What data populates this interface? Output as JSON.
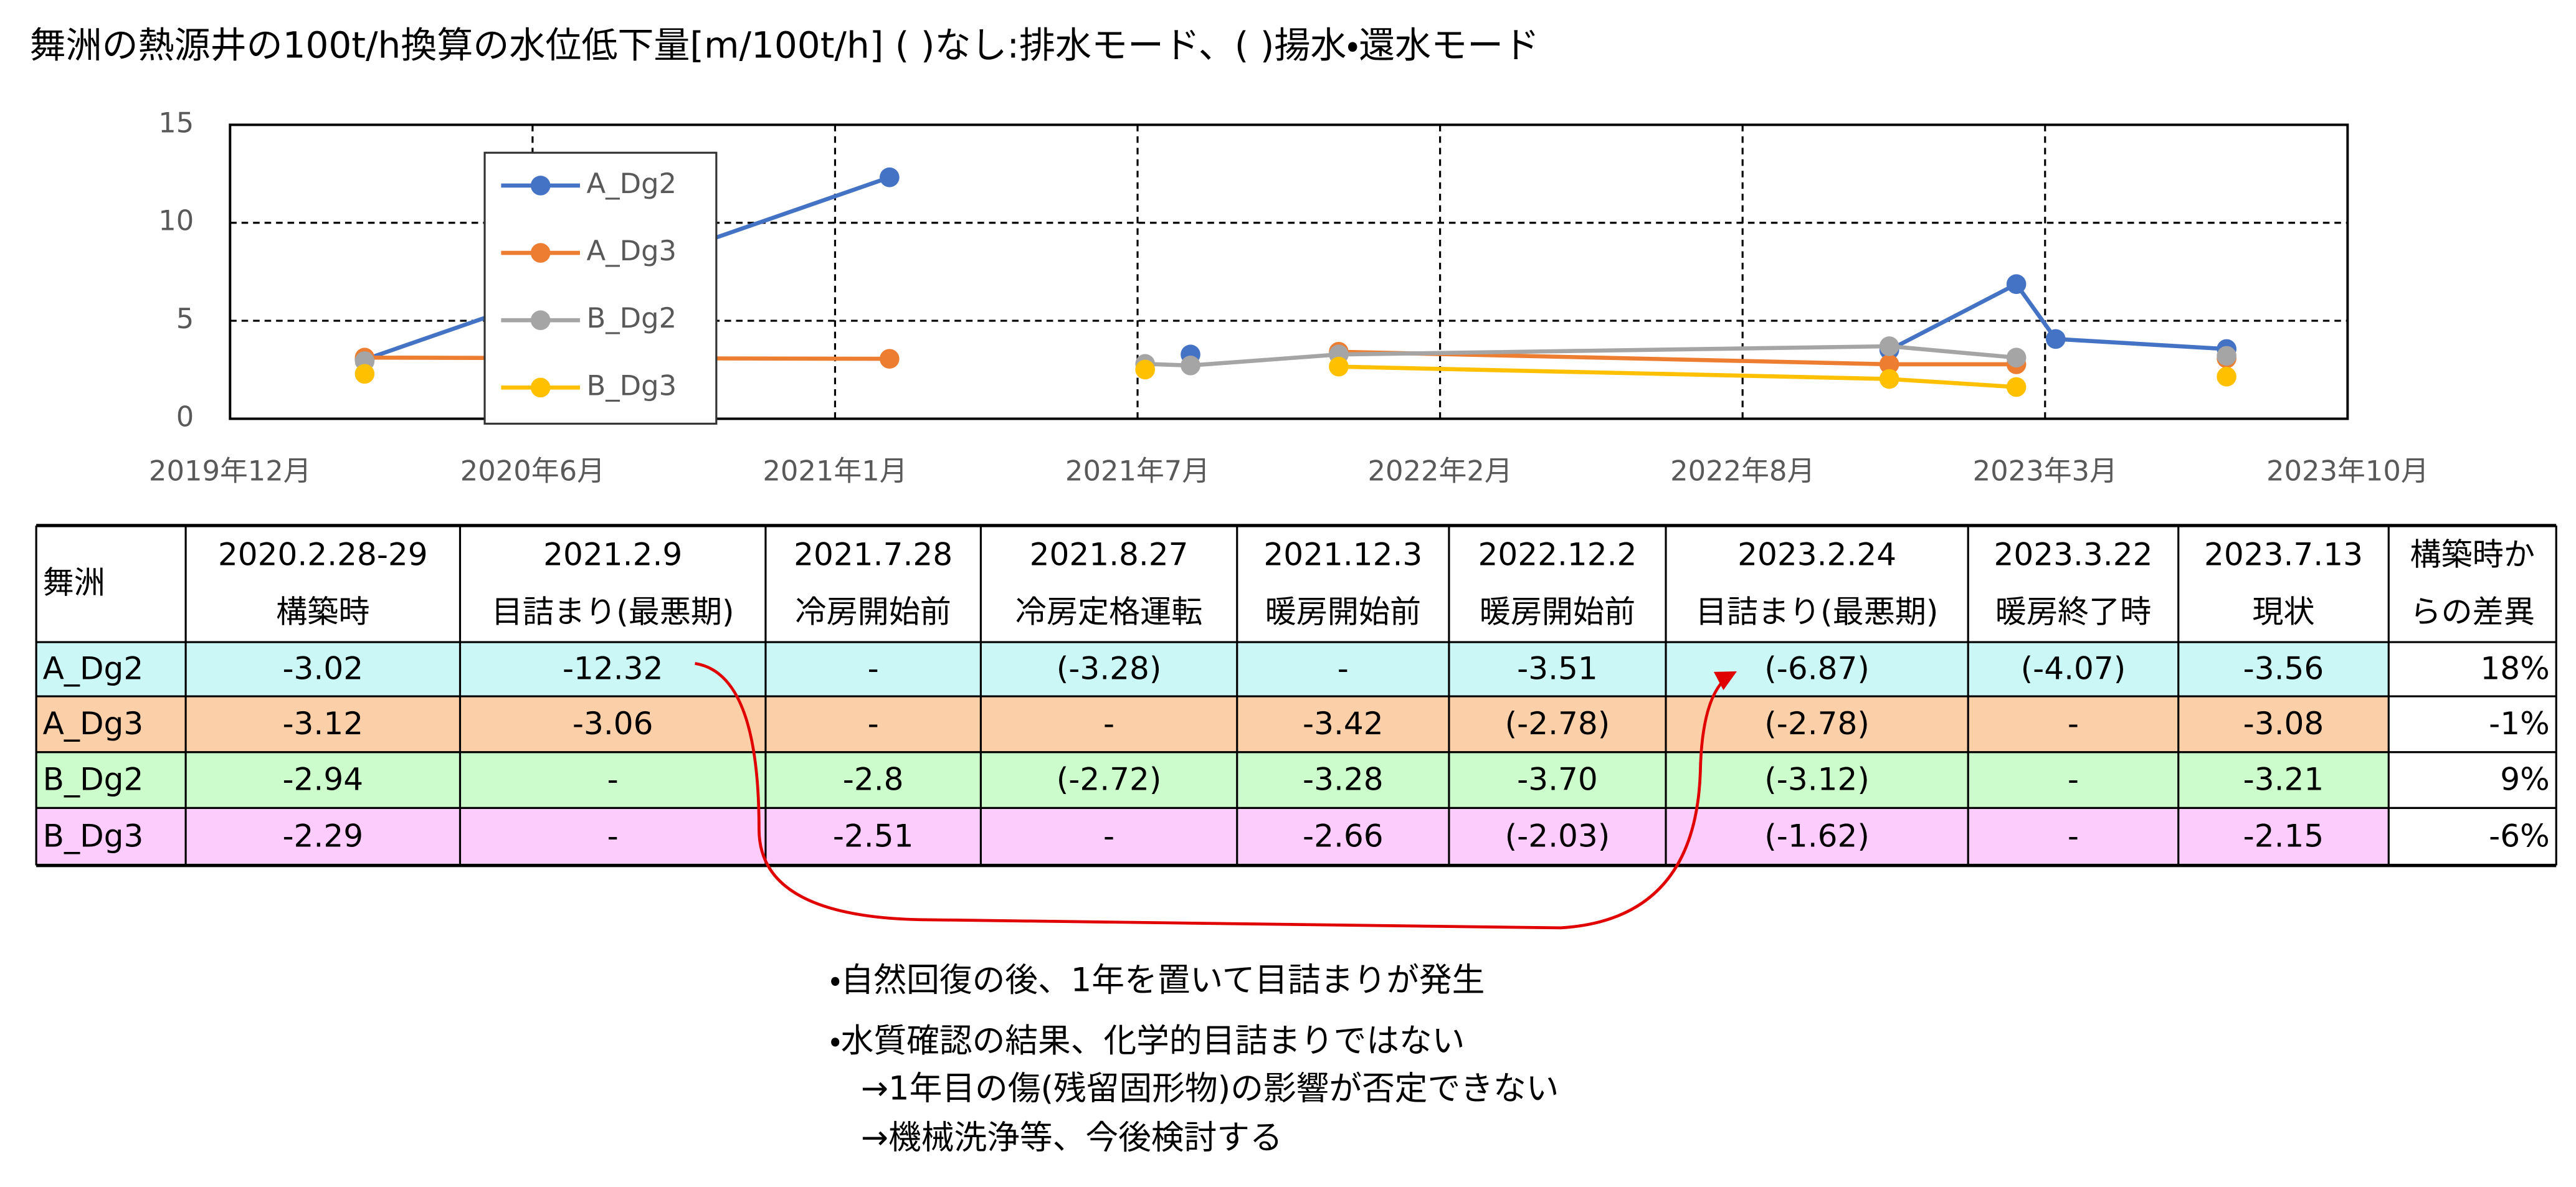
{
  "chart_data": {
    "type": "line",
    "title": "舞洲の熱源井の100t/h換算の水位低下量[m/100t/h] ( )なし:排水モード、( )揚水・還水モード",
    "x": [
      "2020-02-28",
      "2021-02-09",
      "2021-07-28",
      "2021-08-27",
      "2021-12-03",
      "2022-12-02",
      "2023-02-24",
      "2023-03-22",
      "2023-07-13"
    ],
    "series": [
      {
        "name": "A_Dg2",
        "color": "#4472c4",
        "values": [
          3.02,
          12.32,
          null,
          3.28,
          null,
          3.51,
          6.87,
          4.07,
          3.56
        ]
      },
      {
        "name": "A_Dg3",
        "color": "#ed7d31",
        "values": [
          3.12,
          3.06,
          null,
          null,
          3.42,
          2.78,
          2.78,
          null,
          3.08
        ]
      },
      {
        "name": "B_Dg2",
        "color": "#a5a5a5",
        "values": [
          2.94,
          null,
          2.8,
          2.72,
          3.28,
          3.7,
          3.12,
          null,
          3.21
        ]
      },
      {
        "name": "B_Dg3",
        "color": "#ffc000",
        "values": [
          2.29,
          null,
          2.51,
          null,
          2.66,
          2.03,
          1.62,
          null,
          2.15
        ]
      }
    ],
    "ylim": [
      0,
      15
    ],
    "yticks": [
      0,
      5,
      10,
      15
    ],
    "xlim": [
      "2019-12-01",
      "2023-10-01"
    ],
    "xticks": [
      {
        "value": "2019-12-01",
        "label": "2019年12月"
      },
      {
        "value": "2020-06-18",
        "label": "2020年6月"
      },
      {
        "value": "2021-01-04",
        "label": "2021年1月"
      },
      {
        "value": "2021-07-23",
        "label": "2021年7月"
      },
      {
        "value": "2022-02-08",
        "label": "2022年2月"
      },
      {
        "value": "2022-08-27",
        "label": "2022年8月"
      },
      {
        "value": "2023-03-15",
        "label": "2023年3月"
      },
      {
        "value": "2023-10-01",
        "label": "2023年10月"
      }
    ],
    "grid": true,
    "legend": "upper-left"
  },
  "table": {
    "columns": [
      "舞洲",
      [
        "2020.2.28-29",
        "構築時"
      ],
      [
        "2021.2.9",
        "目詰まり(最悪期)"
      ],
      [
        "2021.7.28",
        "冷房開始前"
      ],
      [
        "2021.8.27",
        "冷房定格運転"
      ],
      [
        "2021.12.3",
        "暖房開始前"
      ],
      [
        "2022.12.2",
        "暖房開始前"
      ],
      [
        "2023.2.24",
        "目詰まり(最悪期)"
      ],
      [
        "2023.3.22",
        "暖房終了時"
      ],
      [
        "2023.7.13",
        "現状"
      ],
      [
        "構築時か",
        "らの差異"
      ]
    ],
    "rows": [
      [
        "A_Dg2",
        "-3.02",
        "-12.32",
        "-",
        "(-3.28)",
        "-",
        "-3.51",
        "(-6.87)",
        "(-4.07)",
        "-3.56",
        "18%"
      ],
      [
        "A_Dg3",
        "-3.12",
        "-3.06",
        "-",
        "-",
        "-3.42",
        "(-2.78)",
        "(-2.78)",
        "-",
        "-3.08",
        "-1%"
      ],
      [
        "B_Dg2",
        "-2.94",
        "-",
        "-2.8",
        "(-2.72)",
        "-3.28",
        "-3.70",
        "(-3.12)",
        "-",
        "-3.21",
        "9%"
      ],
      [
        "B_Dg3",
        "-2.29",
        "-",
        "-2.51",
        "-",
        "-2.66",
        "(-2.03)",
        "(-1.62)",
        "-",
        "-2.15",
        "-6%"
      ]
    ]
  },
  "notes": [
    "・自然回復の後、1年を置いて目詰まりが発生",
    "・水質確認の結果、化学的目詰まりではない",
    "→1年目の傷(残留固形物)の影響が否定できない",
    "→機械洗浄等、今後検討する"
  ]
}
